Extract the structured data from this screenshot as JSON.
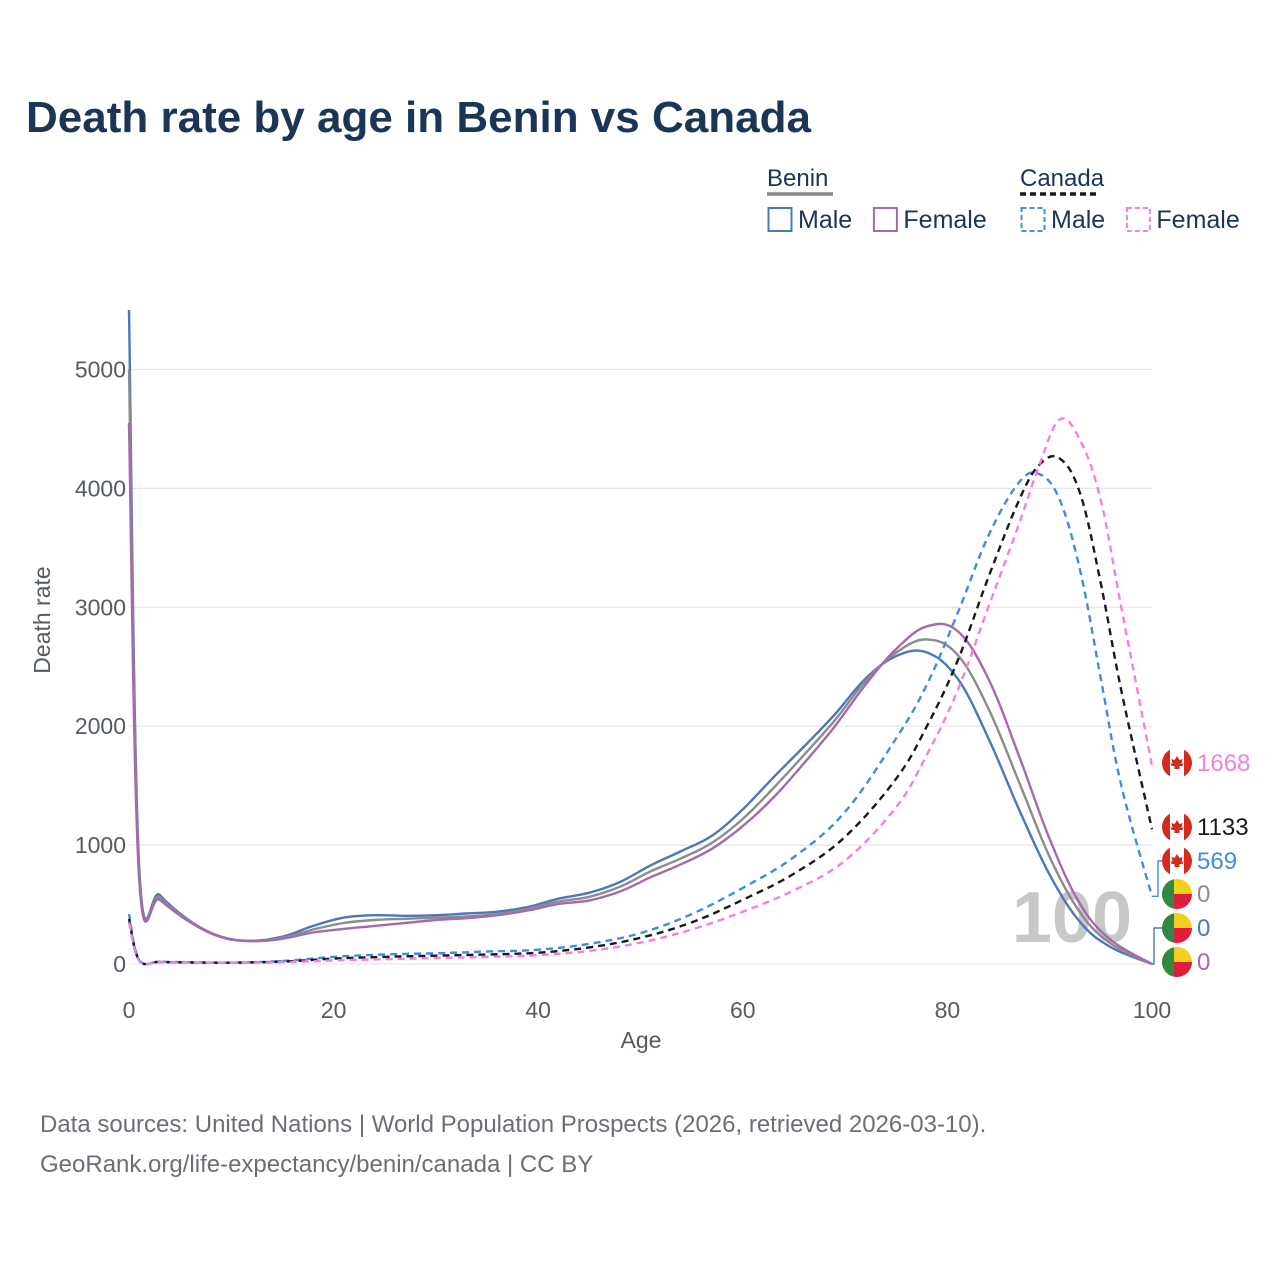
{
  "title": "Death rate by age in Benin vs Canada",
  "legend": {
    "groups": [
      {
        "name": "Benin",
        "color": "#888888",
        "dash": false,
        "items": [
          {
            "label": "Male",
            "color": "#4a78bd"
          },
          {
            "label": "Female",
            "color": "#a56aab"
          }
        ]
      },
      {
        "name": "Canada",
        "color": "#1a1a1a",
        "dash": true,
        "items": [
          {
            "label": "Male",
            "color": "#3f8ce6"
          },
          {
            "label": "Female",
            "color": "#f57ee3"
          }
        ]
      }
    ]
  },
  "year_label": "100",
  "source_line1": "Data sources: United Nations | World Population Prospects (2026, retrieved 2026-03-10).",
  "source_line2": "GeoRank.org/life-expectancy/benin/canada | CC BY",
  "end_labels": [
    {
      "country": "canada",
      "text": "1668",
      "color": "#f57ee3",
      "value": 1668
    },
    {
      "country": "canada",
      "text": "1133",
      "color": "#1a1a1a",
      "value": 1133
    },
    {
      "country": "canada",
      "text": "569",
      "color": "#3f8ce6",
      "value": 569
    },
    {
      "country": "benin",
      "text": "0",
      "color": "#8c8c8c",
      "value": 0
    },
    {
      "country": "benin",
      "text": "0",
      "color": "#4a78bd",
      "value": 0
    },
    {
      "country": "benin",
      "text": "0",
      "color": "#a56aab",
      "value": 0
    }
  ],
  "flag_colors": {
    "canada": {
      "red": "#d52b1e",
      "white": "#ffffff"
    },
    "benin": {
      "green": "#2d8a3f",
      "yellow": "#f5cf1f",
      "red": "#e01e3c"
    }
  },
  "chart_data": {
    "type": "line",
    "xlabel": "Age",
    "ylabel": "Death rate",
    "xlim": [
      0,
      100
    ],
    "ylim": [
      0,
      5500
    ],
    "xticks": [
      0,
      20,
      40,
      60,
      80,
      100
    ],
    "yticks": [
      0,
      1000,
      2000,
      3000,
      4000,
      5000
    ],
    "grid": true,
    "series": [
      {
        "name": "Benin Male",
        "color": "#4a78bd",
        "dashed": false,
        "x": [
          0,
          1,
          3,
          6,
          9,
          12,
          15,
          18,
          21,
          24,
          27,
          30,
          33,
          36,
          39,
          42,
          45,
          48,
          51,
          54,
          57,
          60,
          63,
          66,
          69,
          72,
          75,
          78,
          81,
          84,
          87,
          90,
          93,
          96,
          100
        ],
        "y": [
          5500,
          820,
          580,
          360,
          230,
          195,
          230,
          320,
          390,
          410,
          405,
          410,
          425,
          440,
          480,
          550,
          600,
          690,
          830,
          950,
          1080,
          1300,
          1570,
          1830,
          2100,
          2400,
          2590,
          2620,
          2400,
          1900,
          1300,
          750,
          350,
          140,
          0
        ]
      },
      {
        "name": "Benin Both",
        "color": "#8c8c8c",
        "dashed": false,
        "x": [
          0,
          1,
          3,
          6,
          9,
          12,
          15,
          18,
          21,
          24,
          27,
          30,
          33,
          36,
          39,
          42,
          45,
          48,
          51,
          54,
          57,
          60,
          63,
          66,
          69,
          72,
          75,
          78,
          81,
          84,
          87,
          90,
          93,
          96,
          100
        ],
        "y": [
          5000,
          760,
          560,
          355,
          228,
          193,
          220,
          290,
          345,
          370,
          380,
          390,
          400,
          420,
          465,
          525,
          565,
          650,
          780,
          890,
          1020,
          1220,
          1480,
          1760,
          2050,
          2380,
          2620,
          2730,
          2600,
          2150,
          1530,
          900,
          430,
          170,
          0
        ]
      },
      {
        "name": "Benin Female",
        "color": "#a56aab",
        "dashed": false,
        "x": [
          0,
          1,
          3,
          6,
          9,
          12,
          15,
          18,
          21,
          24,
          27,
          30,
          33,
          36,
          39,
          42,
          45,
          48,
          51,
          54,
          57,
          60,
          63,
          66,
          69,
          72,
          75,
          78,
          81,
          84,
          87,
          90,
          93,
          96,
          100
        ],
        "y": [
          4550,
          710,
          540,
          350,
          225,
          192,
          212,
          265,
          295,
          320,
          345,
          370,
          385,
          410,
          450,
          505,
          535,
          610,
          730,
          840,
          970,
          1160,
          1400,
          1690,
          2000,
          2350,
          2650,
          2840,
          2800,
          2400,
          1750,
          1050,
          500,
          200,
          0
        ]
      },
      {
        "name": "Canada Male",
        "color": "#3f8ce6",
        "dashed": true,
        "x": [
          0,
          1,
          3,
          6,
          10,
          15,
          20,
          25,
          30,
          35,
          40,
          45,
          50,
          55,
          60,
          65,
          70,
          75,
          78,
          81,
          84,
          87,
          89,
          91,
          93,
          95,
          97,
          100
        ],
        "y": [
          420,
          35,
          20,
          15,
          12,
          25,
          60,
          80,
          90,
          105,
          120,
          170,
          260,
          420,
          640,
          900,
          1280,
          1900,
          2350,
          2950,
          3600,
          4050,
          4120,
          3900,
          3300,
          2400,
          1500,
          569
        ]
      },
      {
        "name": "Canada Both",
        "color": "#1a1a1a",
        "dashed": true,
        "x": [
          0,
          1,
          3,
          6,
          10,
          15,
          20,
          25,
          30,
          35,
          40,
          45,
          50,
          55,
          60,
          65,
          70,
          75,
          78,
          81,
          84,
          87,
          89,
          91,
          93,
          95,
          97,
          100
        ],
        "y": [
          380,
          30,
          17,
          13,
          11,
          20,
          45,
          60,
          70,
          80,
          95,
          140,
          220,
          350,
          540,
          760,
          1070,
          1560,
          2000,
          2550,
          3250,
          3900,
          4200,
          4250,
          3950,
          3200,
          2300,
          1133
        ]
      },
      {
        "name": "Canada Female",
        "color": "#f57ee3",
        "dashed": true,
        "x": [
          0,
          1,
          3,
          6,
          10,
          15,
          20,
          25,
          30,
          35,
          40,
          45,
          50,
          55,
          60,
          65,
          70,
          75,
          78,
          81,
          84,
          87,
          89,
          91,
          93,
          95,
          97,
          100
        ],
        "y": [
          350,
          25,
          15,
          12,
          10,
          15,
          30,
          40,
          50,
          60,
          75,
          110,
          180,
          290,
          440,
          620,
          870,
          1320,
          1760,
          2300,
          3000,
          3700,
          4200,
          4580,
          4400,
          3900,
          3000,
          1668
        ]
      }
    ]
  }
}
